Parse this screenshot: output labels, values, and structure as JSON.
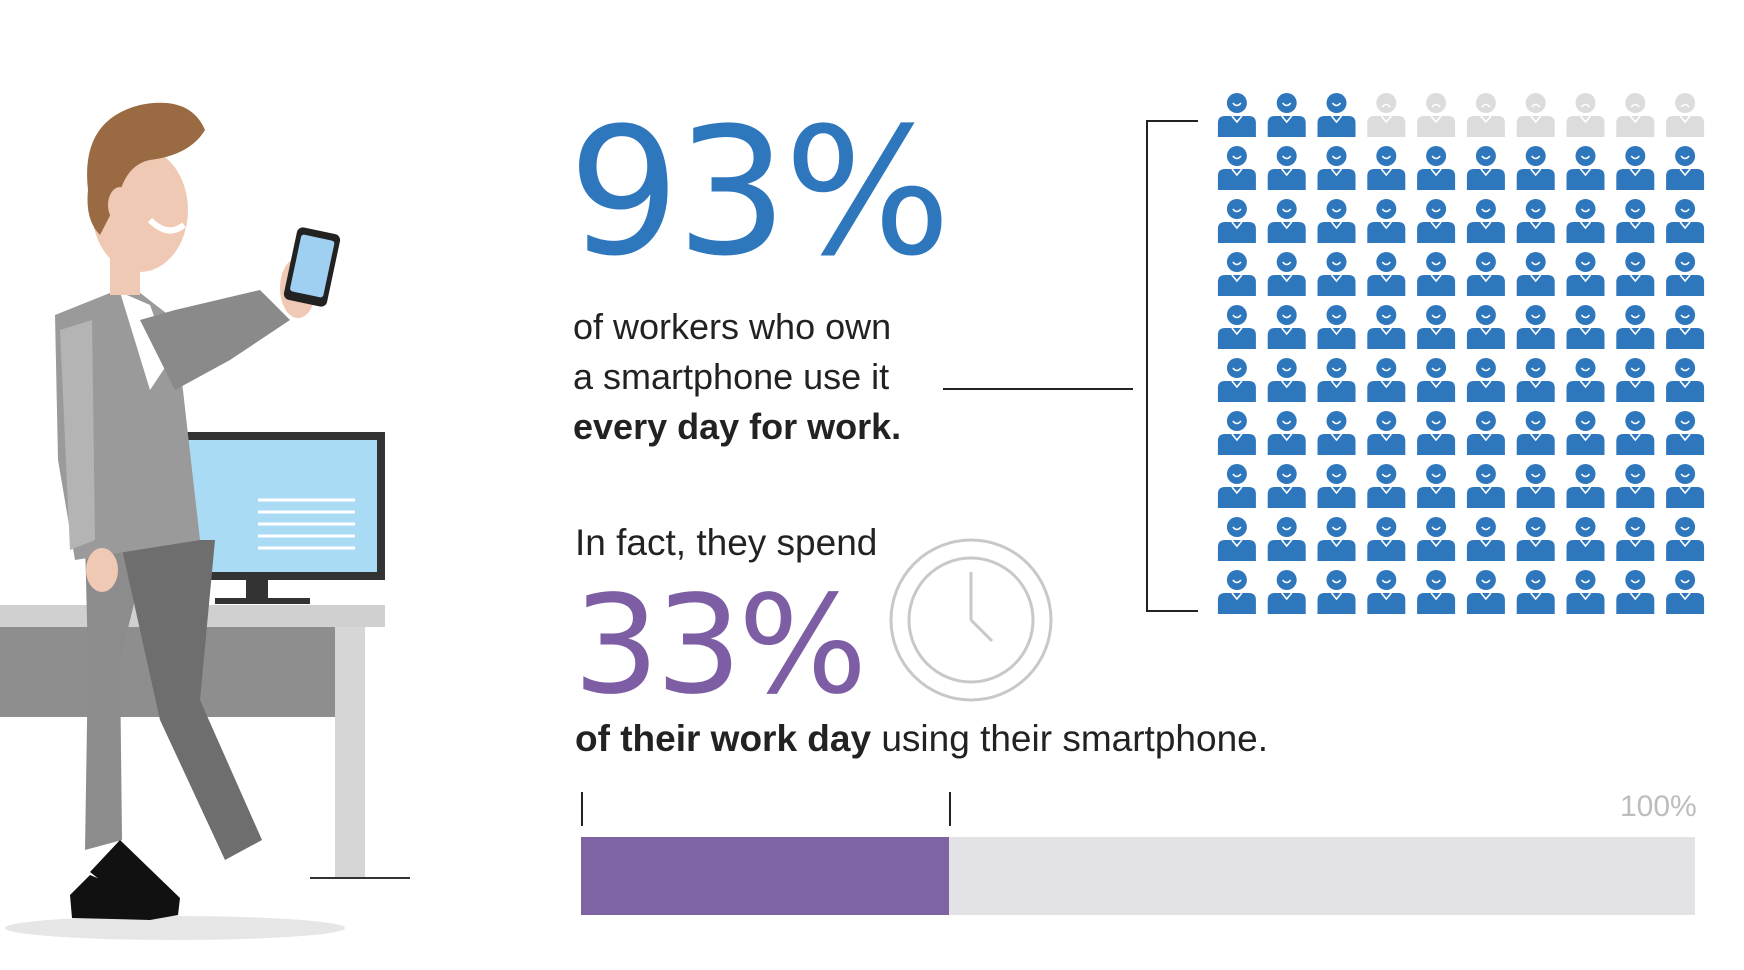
{
  "stat_primary": {
    "value": "93%",
    "text_line1": "of workers who own",
    "text_line2": "a smartphone use it",
    "text_bold": "every day for work."
  },
  "people_grid": {
    "rows": 10,
    "cols": 10,
    "highlighted": 93,
    "highlight_color": "#2f77bd",
    "dim_color": "#dcdcdc"
  },
  "stat_secondary": {
    "intro": "In fact, they spend",
    "value": "33%",
    "text_bold": "of their work day",
    "text_rest": " using their smartphone."
  },
  "progress_bar": {
    "fraction": 0.33,
    "max_label": "100%",
    "fill_color": "#7e64a3",
    "track_color": "#e3e3e5"
  },
  "icons": {
    "person": "person-icon",
    "clock": "clock-icon",
    "illustration": "businessman-with-smartphone-illustration"
  }
}
